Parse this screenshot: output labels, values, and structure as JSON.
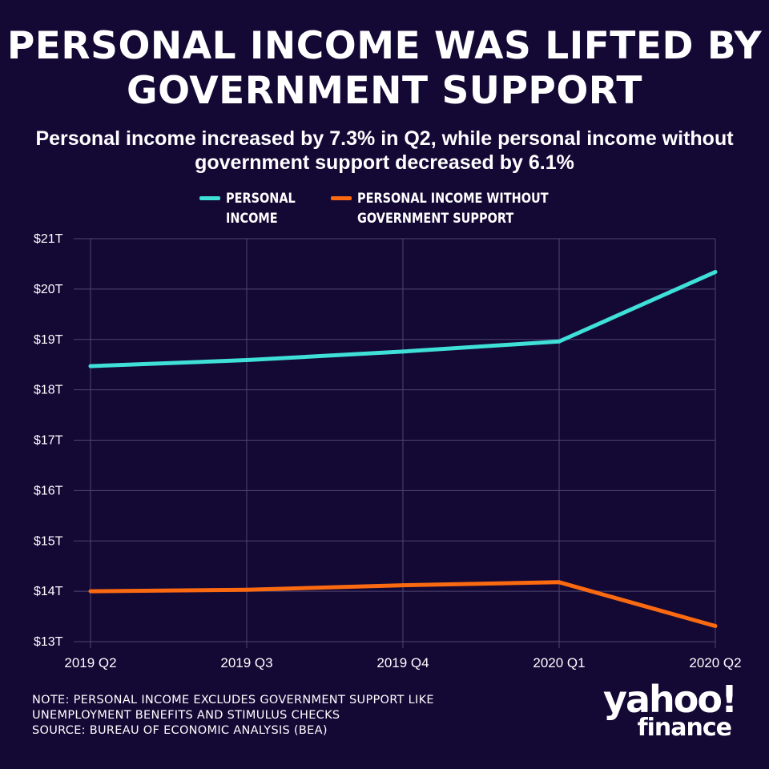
{
  "title": "PERSONAL INCOME WAS LIFTED BY GOVERNMENT SUPPORT",
  "subtitle": "Personal income increased by 7.3% in Q2, while personal income without government support decreased by 6.1%",
  "note_lines": [
    "NOTE: PERSONAL INCOME EXCLUDES GOVERNMENT SUPPORT LIKE",
    "UNEMPLOYMENT BENEFITS AND STIMULUS CHECKS",
    "SOURCE: BUREAU OF ECONOMIC ANALYSIS (BEA)"
  ],
  "logo": {
    "main": "yahoo!",
    "sub": "finance"
  },
  "colors": {
    "background": "#140835",
    "grid": "#4e4673",
    "personal_income": "#3ee0d8",
    "without_support": "#fb6a10"
  },
  "chart_data": {
    "type": "line",
    "categories": [
      "2019 Q2",
      "2019 Q3",
      "2019 Q4",
      "2020 Q1",
      "2020 Q2"
    ],
    "series": [
      {
        "name": "PERSONAL\nINCOME",
        "color": "#3ee0d8",
        "values": [
          18.47,
          18.59,
          18.76,
          18.96,
          20.34
        ]
      },
      {
        "name": "PERSONAL INCOME WITHOUT\nGOVERNMENT SUPPORT",
        "color": "#fb6a10",
        "values": [
          14.0,
          14.03,
          14.12,
          14.18,
          13.31
        ]
      }
    ],
    "ylim": [
      13,
      21
    ],
    "yticks": [
      13,
      14,
      15,
      16,
      17,
      18,
      19,
      20,
      21
    ],
    "ytick_labels": [
      "$13T",
      "$14T",
      "$15T",
      "$16T",
      "$17T",
      "$18T",
      "$19T",
      "$20T",
      "$21T"
    ],
    "xlabel": "",
    "ylabel": "",
    "grid": true,
    "legend_position": "top-center"
  }
}
